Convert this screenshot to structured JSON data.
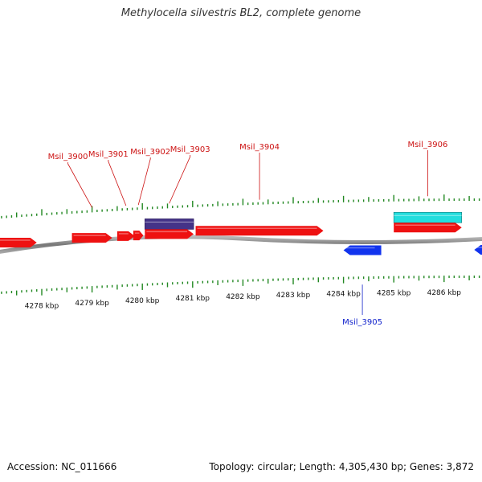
{
  "title": "Methylocella silvestris BL2, complete genome",
  "footer": {
    "accession": "Accession: NC_011666",
    "summary": "Topology: circular; Length: 4,305,430 bp; Genes: 3,872"
  },
  "colors": {
    "forward_gene": "#ee1111",
    "reverse_gene": "#1133ee",
    "feature_purple": "#443388",
    "feature_cyan": "#22dddd",
    "tick": "#228822",
    "backbone": "#999999",
    "label_red": "#cc1111",
    "label_blue": "#1122cc"
  },
  "chart_data": {
    "type": "genome-map",
    "units": "kbp",
    "scale_labels": [
      "4278 kbp",
      "4279 kbp",
      "4280 kbp",
      "4281 kbp",
      "4282 kbp",
      "4283 kbp",
      "4284 kbp",
      "4285 kbp",
      "4286 kbp"
    ],
    "genes": [
      {
        "label": "",
        "start": 4276.9,
        "end": 4277.9,
        "strand": "+"
      },
      {
        "label": "Msil_3900",
        "start": 4278.6,
        "end": 4279.4,
        "strand": "+"
      },
      {
        "label": "Msil_3901",
        "start": 4279.5,
        "end": 4279.85,
        "strand": "+"
      },
      {
        "label": "Msil_3902",
        "start": 4279.82,
        "end": 4280.02,
        "strand": "+"
      },
      {
        "label": "Msil_3903",
        "start": 4280.05,
        "end": 4281.02,
        "strand": "+"
      },
      {
        "label": "Msil_3904",
        "start": 4281.06,
        "end": 4283.6,
        "strand": "+"
      },
      {
        "label": "Msil_3905",
        "start": 4284.0,
        "end": 4284.75,
        "strand": "-"
      },
      {
        "label": "Msil_3906",
        "start": 4285.0,
        "end": 4286.35,
        "strand": "+"
      },
      {
        "label": "",
        "start": 4286.6,
        "end": 4287.2,
        "strand": "-"
      }
    ],
    "features": [
      {
        "start": 4280.05,
        "end": 4281.02,
        "color": "feature_purple"
      },
      {
        "start": 4285.0,
        "end": 4286.35,
        "color": "feature_cyan"
      }
    ]
  }
}
